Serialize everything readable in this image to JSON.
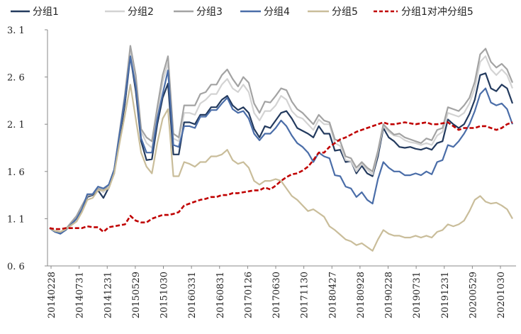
{
  "chart_data": {
    "type": "line",
    "title": "",
    "xlabel": "",
    "ylabel": "",
    "ylim": [
      0.6,
      3.1
    ],
    "yticks": [
      "0.6",
      "1.1",
      "1.6",
      "2.1",
      "2.6",
      "3.1"
    ],
    "xtick_labels": [
      "20140228",
      "20140731",
      "20141231",
      "20150529",
      "20151030",
      "20160331",
      "20160831",
      "20170126",
      "20170630",
      "20171130",
      "20180427",
      "20180928",
      "20190228",
      "20190731",
      "20191231",
      "20200529",
      "20201030"
    ],
    "legend_position": "top",
    "grid": false,
    "series": [
      {
        "name": "分组1",
        "color": "#233a5e",
        "dash": false,
        "values": [
          1.0,
          0.96,
          0.95,
          0.98,
          1.04,
          1.1,
          1.18,
          1.33,
          1.35,
          1.4,
          1.32,
          1.43,
          1.58,
          1.95,
          2.32,
          2.82,
          2.45,
          1.92,
          1.72,
          1.73,
          2.1,
          2.38,
          2.53,
          1.78,
          1.78,
          2.12,
          2.12,
          2.1,
          2.2,
          2.2,
          2.28,
          2.28,
          2.36,
          2.4,
          2.3,
          2.25,
          2.28,
          2.22,
          2.05,
          1.96,
          2.08,
          2.06,
          2.14,
          2.22,
          2.24,
          2.16,
          2.06,
          2.03,
          2.0,
          1.96,
          2.08,
          2.0,
          2.0,
          1.82,
          1.83,
          1.7,
          1.71,
          1.58,
          1.66,
          1.58,
          1.55,
          1.76,
          2.06,
          1.96,
          1.92,
          1.86,
          1.85,
          1.86,
          1.84,
          1.83,
          1.85,
          1.83,
          1.9,
          1.92,
          2.15,
          2.1,
          2.06,
          2.1,
          2.21,
          2.36,
          2.62,
          2.64,
          2.48,
          2.45,
          2.52,
          2.48,
          2.32
        ]
      },
      {
        "name": "分组2",
        "color": "#d3d3d3",
        "dash": false,
        "values": [
          1.0,
          0.97,
          0.96,
          0.99,
          1.06,
          1.12,
          1.22,
          1.34,
          1.36,
          1.42,
          1.38,
          1.45,
          1.6,
          2.0,
          2.38,
          2.88,
          2.55,
          2.02,
          1.9,
          1.85,
          2.2,
          2.55,
          2.75,
          1.95,
          1.92,
          2.22,
          2.22,
          2.2,
          2.32,
          2.36,
          2.42,
          2.42,
          2.52,
          2.58,
          2.48,
          2.44,
          2.52,
          2.44,
          2.22,
          2.14,
          2.24,
          2.24,
          2.3,
          2.4,
          2.36,
          2.24,
          2.18,
          2.16,
          2.1,
          2.04,
          2.15,
          2.1,
          2.1,
          1.9,
          1.87,
          1.72,
          1.71,
          1.6,
          1.68,
          1.62,
          1.57,
          1.8,
          2.08,
          2.02,
          1.98,
          1.97,
          1.93,
          1.91,
          1.9,
          1.88,
          1.9,
          1.88,
          1.98,
          2.02,
          2.22,
          2.2,
          2.18,
          2.22,
          2.32,
          2.48,
          2.76,
          2.82,
          2.68,
          2.62,
          2.68,
          2.62,
          2.48
        ]
      },
      {
        "name": "分组3",
        "color": "#a3a3a3",
        "dash": false,
        "values": [
          1.0,
          0.97,
          0.96,
          0.99,
          1.06,
          1.13,
          1.24,
          1.34,
          1.36,
          1.42,
          1.4,
          1.46,
          1.62,
          2.02,
          2.42,
          2.93,
          2.62,
          2.05,
          1.96,
          1.92,
          2.28,
          2.62,
          2.82,
          2.0,
          1.96,
          2.3,
          2.3,
          2.3,
          2.42,
          2.44,
          2.52,
          2.52,
          2.62,
          2.68,
          2.58,
          2.5,
          2.6,
          2.54,
          2.32,
          2.22,
          2.34,
          2.33,
          2.4,
          2.48,
          2.46,
          2.34,
          2.26,
          2.22,
          2.16,
          2.1,
          2.2,
          2.14,
          2.12,
          1.94,
          1.92,
          1.76,
          1.74,
          1.64,
          1.7,
          1.64,
          1.6,
          1.82,
          2.1,
          2.04,
          1.99,
          2.0,
          1.96,
          1.94,
          1.92,
          1.9,
          1.95,
          1.93,
          2.04,
          2.06,
          2.28,
          2.26,
          2.24,
          2.3,
          2.38,
          2.55,
          2.84,
          2.9,
          2.76,
          2.7,
          2.74,
          2.68,
          2.54
        ]
      },
      {
        "name": "分组4",
        "color": "#4a6da8",
        "dash": false,
        "values": [
          1.0,
          0.96,
          0.94,
          0.98,
          1.04,
          1.1,
          1.2,
          1.36,
          1.36,
          1.44,
          1.42,
          1.46,
          1.62,
          2.0,
          2.38,
          2.82,
          2.5,
          1.95,
          1.8,
          1.8,
          2.16,
          2.42,
          2.67,
          1.88,
          1.86,
          2.08,
          2.08,
          2.06,
          2.18,
          2.18,
          2.25,
          2.25,
          2.32,
          2.38,
          2.26,
          2.22,
          2.24,
          2.16,
          2.0,
          1.93,
          2.0,
          2.0,
          2.06,
          2.14,
          2.08,
          1.98,
          1.9,
          1.86,
          1.8,
          1.7,
          1.8,
          1.76,
          1.74,
          1.56,
          1.55,
          1.44,
          1.42,
          1.33,
          1.38,
          1.3,
          1.26,
          1.52,
          1.7,
          1.64,
          1.6,
          1.6,
          1.56,
          1.56,
          1.58,
          1.56,
          1.6,
          1.57,
          1.7,
          1.72,
          1.88,
          1.86,
          1.92,
          2.0,
          2.1,
          2.24,
          2.42,
          2.48,
          2.33,
          2.3,
          2.32,
          2.26,
          2.1
        ]
      },
      {
        "name": "分组5",
        "color": "#c9bd9a",
        "dash": false,
        "values": [
          1.0,
          0.97,
          0.96,
          0.99,
          1.03,
          1.07,
          1.17,
          1.3,
          1.32,
          1.4,
          1.4,
          1.42,
          1.58,
          1.9,
          2.2,
          2.52,
          2.16,
          1.8,
          1.65,
          1.58,
          1.9,
          2.16,
          2.26,
          1.55,
          1.55,
          1.7,
          1.68,
          1.65,
          1.7,
          1.7,
          1.76,
          1.76,
          1.78,
          1.83,
          1.72,
          1.68,
          1.7,
          1.64,
          1.5,
          1.46,
          1.5,
          1.5,
          1.52,
          1.5,
          1.42,
          1.34,
          1.3,
          1.24,
          1.18,
          1.2,
          1.16,
          1.12,
          1.02,
          0.98,
          0.93,
          0.88,
          0.86,
          0.82,
          0.84,
          0.8,
          0.76,
          0.88,
          0.98,
          0.94,
          0.92,
          0.92,
          0.9,
          0.9,
          0.92,
          0.9,
          0.92,
          0.9,
          0.96,
          0.98,
          1.04,
          1.02,
          1.04,
          1.08,
          1.18,
          1.3,
          1.34,
          1.28,
          1.26,
          1.27,
          1.24,
          1.2,
          1.1
        ]
      },
      {
        "name": "分组1对冲分组5",
        "color": "#c00000",
        "dash": true,
        "values": [
          1.0,
          0.99,
          0.99,
          1.0,
          1.0,
          1.0,
          1.0,
          1.02,
          1.01,
          1.01,
          0.96,
          1.01,
          1.02,
          1.03,
          1.04,
          1.13,
          1.08,
          1.06,
          1.06,
          1.1,
          1.12,
          1.14,
          1.14,
          1.15,
          1.17,
          1.24,
          1.26,
          1.28,
          1.3,
          1.31,
          1.33,
          1.33,
          1.35,
          1.35,
          1.37,
          1.37,
          1.38,
          1.39,
          1.4,
          1.4,
          1.43,
          1.41,
          1.45,
          1.5,
          1.54,
          1.57,
          1.58,
          1.61,
          1.65,
          1.72,
          1.8,
          1.8,
          1.86,
          1.9,
          1.94,
          1.96,
          1.99,
          2.02,
          2.04,
          2.06,
          2.08,
          2.1,
          2.12,
          2.1,
          2.1,
          2.11,
          2.12,
          2.11,
          2.1,
          2.11,
          2.12,
          2.1,
          2.1,
          2.11,
          2.12,
          2.08,
          2.04,
          2.06,
          2.06,
          2.06,
          2.08,
          2.08,
          2.06,
          2.04,
          2.06,
          2.1,
          2.12
        ]
      }
    ]
  }
}
